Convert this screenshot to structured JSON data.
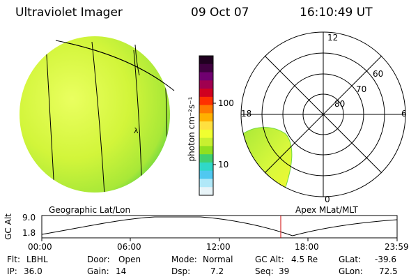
{
  "header": {
    "instrument": "Ultraviolet Imager",
    "date": "09 Oct 07",
    "time": "16:10:49 UT"
  },
  "colorbar": {
    "label": "photon cm⁻²s⁻¹",
    "tick_labels": [
      "100",
      "10"
    ],
    "colors": [
      "#200020",
      "#400040",
      "#700070",
      "#a00050",
      "#d00020",
      "#ff3000",
      "#ff7a00",
      "#ffb000",
      "#ffe040",
      "#f0ff30",
      "#c8f030",
      "#90e020",
      "#40d070",
      "#30d8c8",
      "#50c8f0",
      "#b0e8f8",
      "#e8f4f8"
    ]
  },
  "polar_plot": {
    "lat_labels": [
      "60",
      "70",
      "80"
    ],
    "mlt_labels": [
      "12",
      "18",
      "6",
      "0"
    ]
  },
  "timeline": {
    "axis_title": "GC Alt",
    "y_ticks": [
      "9.0",
      "1.8"
    ],
    "left_title": "Geographic Lat/Lon",
    "right_title": "Apex MLat/MLT",
    "x_ticks": [
      "00:00",
      "06:00",
      "12:00",
      "18:00",
      "23:59"
    ],
    "marker_time": "16:10"
  },
  "info": {
    "flt_label": "Flt:",
    "flt_value": "LBHL",
    "ip_label": "IP:",
    "ip_value": "36.0",
    "door_label": "Door:",
    "door_value": "Open",
    "gain_label": "Gain:",
    "gain_value": "14",
    "mode_label": "Mode:",
    "mode_value": "Normal",
    "dsp_label": "Dsp:",
    "dsp_value": "7.2",
    "gcalt_label": "GC Alt:",
    "gcalt_value": "4.5 Re",
    "seq_label": "Seq:",
    "seq_value": "39",
    "glat_label": "GLat:",
    "glat_value": "-39.6",
    "glon_label": "GLon:",
    "glon_value": "72.5"
  },
  "colors": {
    "disk_green": "#c8f030",
    "disk_edge": "#70d840",
    "marker_red": "#cc0000"
  }
}
